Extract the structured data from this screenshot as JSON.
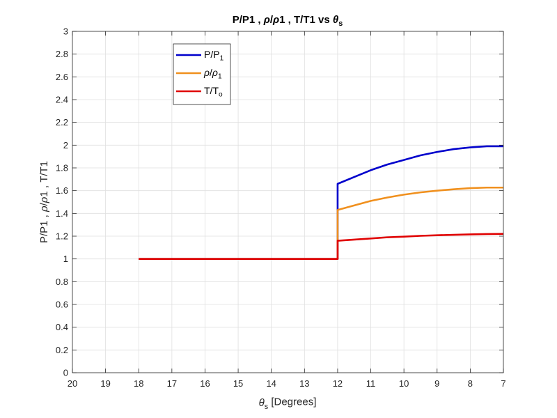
{
  "chart_data": {
    "type": "line",
    "title_parts": [
      {
        "t": "P/P1 , "
      },
      {
        "t": "ρ",
        "italic": true
      },
      {
        "t": "/"
      },
      {
        "t": "ρ",
        "italic": true
      },
      {
        "t": "1 , T/T1 vs "
      },
      {
        "t": "θ",
        "italic": true
      },
      {
        "t": "s",
        "sub": true
      }
    ],
    "xlabel_parts": [
      {
        "t": "θ",
        "italic": true
      },
      {
        "t": "s",
        "sub": true
      },
      {
        "t": " [Degrees]"
      }
    ],
    "ylabel_parts": [
      {
        "t": "P/P1 , "
      },
      {
        "t": "ρ",
        "italic": true
      },
      {
        "t": "/"
      },
      {
        "t": "ρ",
        "italic": true
      },
      {
        "t": "1 , T/T1"
      }
    ],
    "xlim": [
      20,
      7
    ],
    "x_reversed": true,
    "ylim": [
      0,
      3
    ],
    "xticks": [
      20,
      19,
      18,
      17,
      16,
      15,
      14,
      13,
      12,
      11,
      10,
      9,
      8,
      7
    ],
    "yticks": [
      0,
      0.2,
      0.4,
      0.6,
      0.8,
      1,
      1.2,
      1.4,
      1.6,
      1.8,
      2,
      2.2,
      2.4,
      2.6,
      2.8,
      3
    ],
    "xtick_labels": [
      "20",
      "19",
      "18",
      "17",
      "16",
      "15",
      "14",
      "13",
      "12",
      "11",
      "10",
      "9",
      "8",
      "7"
    ],
    "ytick_labels": [
      "0",
      "0.2",
      "0.4",
      "0.6",
      "0.8",
      "1",
      "1.2",
      "1.4",
      "1.6",
      "1.8",
      "2",
      "2.2",
      "2.4",
      "2.6",
      "2.8",
      "3"
    ],
    "grid": true,
    "legend_position": "top-left",
    "series": [
      {
        "legend": [
          {
            "t": "P/P"
          },
          {
            "t": "1",
            "sub": true
          }
        ],
        "color": "#0000cc",
        "points": [
          [
            18,
            1
          ],
          [
            12,
            1
          ],
          [
            12,
            1.66
          ],
          [
            11.5,
            1.72
          ],
          [
            11,
            1.78
          ],
          [
            10.5,
            1.83
          ],
          [
            10,
            1.87
          ],
          [
            9.5,
            1.91
          ],
          [
            9,
            1.94
          ],
          [
            8.5,
            1.965
          ],
          [
            8,
            1.98
          ],
          [
            7.5,
            1.99
          ],
          [
            7,
            1.99
          ]
        ]
      },
      {
        "legend": [
          {
            "t": "ρ",
            "italic": true
          },
          {
            "t": "/"
          },
          {
            "t": "ρ",
            "italic": true
          },
          {
            "t": "1",
            "sub": true
          }
        ],
        "color": "#f0901e",
        "points": [
          [
            18,
            1
          ],
          [
            12,
            1
          ],
          [
            12,
            1.43
          ],
          [
            11.5,
            1.47
          ],
          [
            11,
            1.51
          ],
          [
            10.5,
            1.54
          ],
          [
            10,
            1.565
          ],
          [
            9.5,
            1.585
          ],
          [
            9,
            1.6
          ],
          [
            8.5,
            1.612
          ],
          [
            8,
            1.622
          ],
          [
            7.5,
            1.627
          ],
          [
            7,
            1.627
          ]
        ]
      },
      {
        "legend": [
          {
            "t": "T/T"
          },
          {
            "t": "o",
            "sub": true
          }
        ],
        "color": "#e00000",
        "points": [
          [
            18,
            1
          ],
          [
            12,
            1
          ],
          [
            12,
            1.16
          ],
          [
            11.5,
            1.17
          ],
          [
            11,
            1.18
          ],
          [
            10.5,
            1.19
          ],
          [
            10,
            1.196
          ],
          [
            9.5,
            1.203
          ],
          [
            9,
            1.208
          ],
          [
            8.5,
            1.212
          ],
          [
            8,
            1.216
          ],
          [
            7.5,
            1.219
          ],
          [
            7,
            1.22
          ]
        ]
      }
    ]
  }
}
